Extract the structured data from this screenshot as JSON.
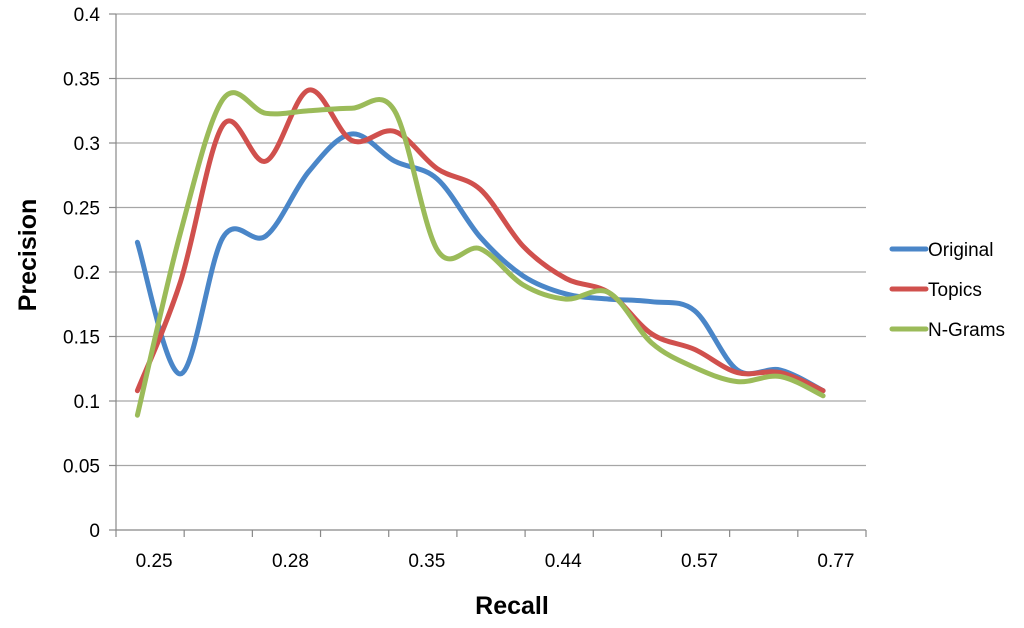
{
  "chart_data": {
    "type": "line",
    "title": "",
    "xlabel": "Recall",
    "ylabel": "Precision",
    "ylim": [
      0,
      0.4
    ],
    "yticks": [
      "0",
      "0.05",
      "0.1",
      "0.15",
      "0.2",
      "0.25",
      "0.3",
      "0.35",
      "0.4"
    ],
    "x_tick_labels": [
      {
        "index": 1,
        "label": "0.25"
      },
      {
        "index": 3,
        "label": "0.28"
      },
      {
        "index": 5,
        "label": "0.35"
      },
      {
        "index": 7,
        "label": "0.44"
      },
      {
        "index": 9,
        "label": "0.57"
      },
      {
        "index": 11,
        "label": "0.77"
      }
    ],
    "grid": "horizontal",
    "legend_position": "right",
    "series": [
      {
        "name": "Original",
        "color": "#4a86c8",
        "values": [
          0.223,
          0.121,
          0.227,
          0.228,
          0.278,
          0.307,
          0.286,
          0.272,
          0.227,
          0.197,
          0.183,
          0.179,
          0.177,
          0.17,
          0.124,
          0.124,
          0.108
        ]
      },
      {
        "name": "Topics",
        "color": "#d0504d",
        "values": [
          0.108,
          0.192,
          0.314,
          0.286,
          0.341,
          0.302,
          0.309,
          0.28,
          0.264,
          0.22,
          0.195,
          0.184,
          0.152,
          0.14,
          0.122,
          0.122,
          0.108
        ]
      },
      {
        "name": "N-Grams",
        "color": "#9bbb59",
        "values": [
          0.089,
          0.23,
          0.334,
          0.323,
          0.325,
          0.327,
          0.325,
          0.217,
          0.218,
          0.19,
          0.179,
          0.184,
          0.145,
          0.126,
          0.115,
          0.119,
          0.104
        ]
      }
    ]
  }
}
